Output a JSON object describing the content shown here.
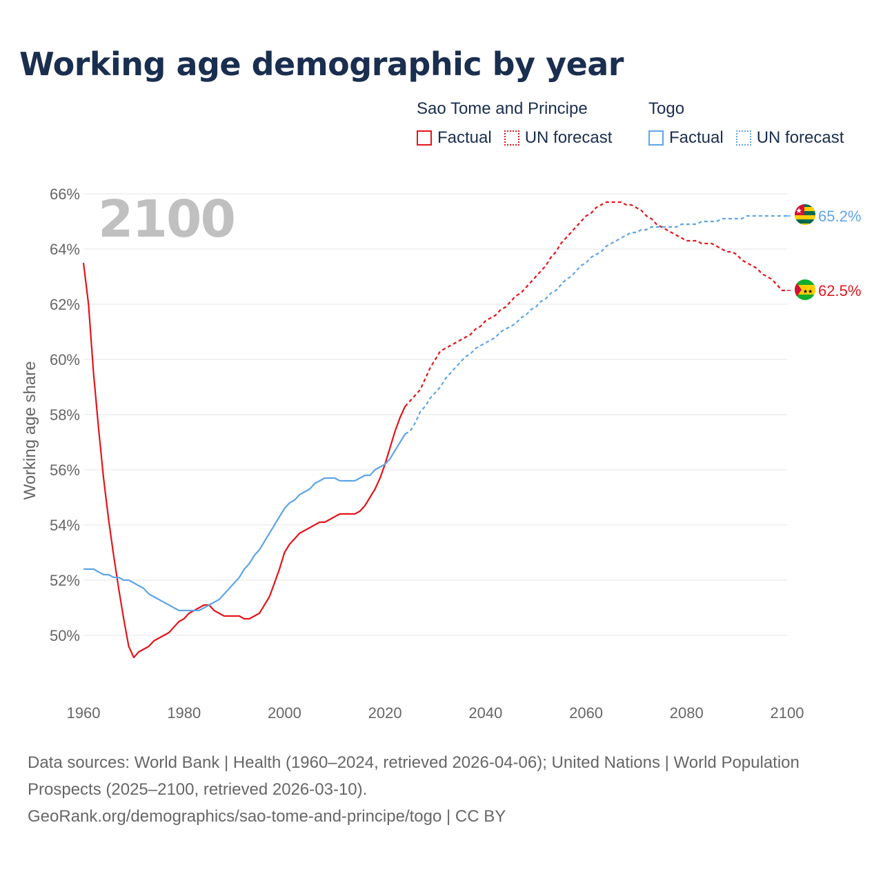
{
  "title": "Working age demographic by year",
  "legend": {
    "groups": [
      {
        "name": "Sao Tome and Principe",
        "factual": "Factual",
        "forecast": "UN forecast",
        "color": "#e3141a"
      },
      {
        "name": "Togo",
        "factual": "Factual",
        "forecast": "UN forecast",
        "color": "#5ea5e6"
      }
    ]
  },
  "source": {
    "line1": "Data sources: World Bank | Health (1960–2024, retrieved 2026-04-06); United Nations | World Population Prospects (2025–2100, retrieved 2026-03-10).",
    "line2": "GeoRank.org/demographics/sao-tome-and-principe/togo | CC BY"
  },
  "chart_data": {
    "type": "line",
    "year_watermark": "2100",
    "ylabel": "Working age share",
    "xlim": [
      1960,
      2100
    ],
    "ylim": [
      48,
      66
    ],
    "yticks": [
      50,
      52,
      54,
      56,
      58,
      60,
      62,
      64,
      66
    ],
    "ytick_labels": [
      "50%",
      "52%",
      "54%",
      "56%",
      "58%",
      "60%",
      "62%",
      "64%",
      "66%"
    ],
    "xticks": [
      1960,
      1980,
      2000,
      2020,
      2040,
      2060,
      2080,
      2100
    ],
    "xtick_labels": [
      "1960",
      "1980",
      "2000",
      "2020",
      "2040",
      "2060",
      "2080",
      "2100"
    ],
    "factual_end_year": 2024,
    "series": [
      {
        "name": "Sao Tome and Principe",
        "color": "#e3141a",
        "end_label": "62.5%",
        "flag_icon": "sao-tome-flag-icon",
        "points": [
          [
            1960,
            63.5
          ],
          [
            1961,
            62.0
          ],
          [
            1962,
            59.5
          ],
          [
            1963,
            57.5
          ],
          [
            1964,
            55.7
          ],
          [
            1965,
            54.2
          ],
          [
            1966,
            52.9
          ],
          [
            1967,
            51.7
          ],
          [
            1968,
            50.6
          ],
          [
            1969,
            49.6
          ],
          [
            1970,
            49.2
          ],
          [
            1971,
            49.4
          ],
          [
            1972,
            49.5
          ],
          [
            1973,
            49.6
          ],
          [
            1974,
            49.8
          ],
          [
            1975,
            49.9
          ],
          [
            1976,
            50.0
          ],
          [
            1977,
            50.1
          ],
          [
            1978,
            50.3
          ],
          [
            1979,
            50.5
          ],
          [
            1980,
            50.6
          ],
          [
            1981,
            50.8
          ],
          [
            1982,
            50.9
          ],
          [
            1983,
            51.0
          ],
          [
            1984,
            51.1
          ],
          [
            1985,
            51.1
          ],
          [
            1986,
            50.9
          ],
          [
            1987,
            50.8
          ],
          [
            1988,
            50.7
          ],
          [
            1989,
            50.7
          ],
          [
            1990,
            50.7
          ],
          [
            1991,
            50.7
          ],
          [
            1992,
            50.6
          ],
          [
            1993,
            50.6
          ],
          [
            1994,
            50.7
          ],
          [
            1995,
            50.8
          ],
          [
            1996,
            51.1
          ],
          [
            1997,
            51.4
          ],
          [
            1998,
            51.9
          ],
          [
            1999,
            52.4
          ],
          [
            2000,
            53.0
          ],
          [
            2001,
            53.3
          ],
          [
            2002,
            53.5
          ],
          [
            2003,
            53.7
          ],
          [
            2004,
            53.8
          ],
          [
            2005,
            53.9
          ],
          [
            2006,
            54.0
          ],
          [
            2007,
            54.1
          ],
          [
            2008,
            54.1
          ],
          [
            2009,
            54.2
          ],
          [
            2010,
            54.3
          ],
          [
            2011,
            54.4
          ],
          [
            2012,
            54.4
          ],
          [
            2013,
            54.4
          ],
          [
            2014,
            54.4
          ],
          [
            2015,
            54.5
          ],
          [
            2016,
            54.7
          ],
          [
            2017,
            55.0
          ],
          [
            2018,
            55.3
          ],
          [
            2019,
            55.7
          ],
          [
            2020,
            56.2
          ],
          [
            2021,
            56.8
          ],
          [
            2022,
            57.4
          ],
          [
            2023,
            57.9
          ],
          [
            2024,
            58.3
          ],
          [
            2025,
            58.5
          ],
          [
            2026,
            58.7
          ],
          [
            2027,
            58.9
          ],
          [
            2028,
            59.3
          ],
          [
            2029,
            59.7
          ],
          [
            2030,
            60.0
          ],
          [
            2031,
            60.3
          ],
          [
            2032,
            60.4
          ],
          [
            2033,
            60.5
          ],
          [
            2034,
            60.6
          ],
          [
            2035,
            60.7
          ],
          [
            2036,
            60.8
          ],
          [
            2037,
            60.9
          ],
          [
            2038,
            61.1
          ],
          [
            2039,
            61.2
          ],
          [
            2040,
            61.4
          ],
          [
            2041,
            61.5
          ],
          [
            2042,
            61.6
          ],
          [
            2043,
            61.8
          ],
          [
            2044,
            61.9
          ],
          [
            2045,
            62.1
          ],
          [
            2046,
            62.3
          ],
          [
            2047,
            62.4
          ],
          [
            2048,
            62.6
          ],
          [
            2049,
            62.8
          ],
          [
            2050,
            63.0
          ],
          [
            2051,
            63.2
          ],
          [
            2052,
            63.4
          ],
          [
            2053,
            63.7
          ],
          [
            2054,
            63.9
          ],
          [
            2055,
            64.2
          ],
          [
            2056,
            64.4
          ],
          [
            2057,
            64.6
          ],
          [
            2058,
            64.8
          ],
          [
            2059,
            65.0
          ],
          [
            2060,
            65.2
          ],
          [
            2061,
            65.3
          ],
          [
            2062,
            65.5
          ],
          [
            2063,
            65.6
          ],
          [
            2064,
            65.7
          ],
          [
            2065,
            65.7
          ],
          [
            2066,
            65.7
          ],
          [
            2067,
            65.7
          ],
          [
            2068,
            65.6
          ],
          [
            2069,
            65.6
          ],
          [
            2070,
            65.5
          ],
          [
            2071,
            65.4
          ],
          [
            2072,
            65.2
          ],
          [
            2073,
            65.1
          ],
          [
            2074,
            64.9
          ],
          [
            2075,
            64.8
          ],
          [
            2076,
            64.7
          ],
          [
            2077,
            64.6
          ],
          [
            2078,
            64.5
          ],
          [
            2079,
            64.4
          ],
          [
            2080,
            64.3
          ],
          [
            2081,
            64.3
          ],
          [
            2082,
            64.3
          ],
          [
            2083,
            64.2
          ],
          [
            2084,
            64.2
          ],
          [
            2085,
            64.2
          ],
          [
            2086,
            64.1
          ],
          [
            2087,
            64.0
          ],
          [
            2088,
            63.9
          ],
          [
            2089,
            63.9
          ],
          [
            2090,
            63.8
          ],
          [
            2091,
            63.6
          ],
          [
            2092,
            63.5
          ],
          [
            2093,
            63.4
          ],
          [
            2094,
            63.3
          ],
          [
            2095,
            63.1
          ],
          [
            2096,
            63.0
          ],
          [
            2097,
            62.9
          ],
          [
            2098,
            62.7
          ],
          [
            2099,
            62.5
          ],
          [
            2100,
            62.5
          ]
        ]
      },
      {
        "name": "Togo",
        "color": "#5ea5e6",
        "end_label": "65.2%",
        "flag_icon": "togo-flag-icon",
        "points": [
          [
            1960,
            52.4
          ],
          [
            1961,
            52.4
          ],
          [
            1962,
            52.4
          ],
          [
            1963,
            52.3
          ],
          [
            1964,
            52.2
          ],
          [
            1965,
            52.2
          ],
          [
            1966,
            52.1
          ],
          [
            1967,
            52.1
          ],
          [
            1968,
            52.0
          ],
          [
            1969,
            52.0
          ],
          [
            1970,
            51.9
          ],
          [
            1971,
            51.8
          ],
          [
            1972,
            51.7
          ],
          [
            1973,
            51.5
          ],
          [
            1974,
            51.4
          ],
          [
            1975,
            51.3
          ],
          [
            1976,
            51.2
          ],
          [
            1977,
            51.1
          ],
          [
            1978,
            51.0
          ],
          [
            1979,
            50.9
          ],
          [
            1980,
            50.9
          ],
          [
            1981,
            50.9
          ],
          [
            1982,
            50.9
          ],
          [
            1983,
            50.9
          ],
          [
            1984,
            51.0
          ],
          [
            1985,
            51.1
          ],
          [
            1986,
            51.2
          ],
          [
            1987,
            51.3
          ],
          [
            1988,
            51.5
          ],
          [
            1989,
            51.7
          ],
          [
            1990,
            51.9
          ],
          [
            1991,
            52.1
          ],
          [
            1992,
            52.4
          ],
          [
            1993,
            52.6
          ],
          [
            1994,
            52.9
          ],
          [
            1995,
            53.1
          ],
          [
            1996,
            53.4
          ],
          [
            1997,
            53.7
          ],
          [
            1998,
            54.0
          ],
          [
            1999,
            54.3
          ],
          [
            2000,
            54.6
          ],
          [
            2001,
            54.8
          ],
          [
            2002,
            54.9
          ],
          [
            2003,
            55.1
          ],
          [
            2004,
            55.2
          ],
          [
            2005,
            55.3
          ],
          [
            2006,
            55.5
          ],
          [
            2007,
            55.6
          ],
          [
            2008,
            55.7
          ],
          [
            2009,
            55.7
          ],
          [
            2010,
            55.7
          ],
          [
            2011,
            55.6
          ],
          [
            2012,
            55.6
          ],
          [
            2013,
            55.6
          ],
          [
            2014,
            55.6
          ],
          [
            2015,
            55.7
          ],
          [
            2016,
            55.8
          ],
          [
            2017,
            55.8
          ],
          [
            2018,
            56.0
          ],
          [
            2019,
            56.1
          ],
          [
            2020,
            56.2
          ],
          [
            2021,
            56.4
          ],
          [
            2022,
            56.7
          ],
          [
            2023,
            57.0
          ],
          [
            2024,
            57.3
          ],
          [
            2025,
            57.4
          ],
          [
            2026,
            57.7
          ],
          [
            2027,
            58.1
          ],
          [
            2028,
            58.3
          ],
          [
            2029,
            58.6
          ],
          [
            2030,
            58.8
          ],
          [
            2031,
            59.0
          ],
          [
            2032,
            59.3
          ],
          [
            2033,
            59.5
          ],
          [
            2034,
            59.7
          ],
          [
            2035,
            59.9
          ],
          [
            2036,
            60.1
          ],
          [
            2037,
            60.2
          ],
          [
            2038,
            60.4
          ],
          [
            2039,
            60.5
          ],
          [
            2040,
            60.6
          ],
          [
            2041,
            60.7
          ],
          [
            2042,
            60.8
          ],
          [
            2043,
            61.0
          ],
          [
            2044,
            61.1
          ],
          [
            2045,
            61.2
          ],
          [
            2046,
            61.3
          ],
          [
            2047,
            61.5
          ],
          [
            2048,
            61.6
          ],
          [
            2049,
            61.8
          ],
          [
            2050,
            61.9
          ],
          [
            2051,
            62.1
          ],
          [
            2052,
            62.2
          ],
          [
            2053,
            62.4
          ],
          [
            2054,
            62.5
          ],
          [
            2055,
            62.7
          ],
          [
            2056,
            62.9
          ],
          [
            2057,
            63.0
          ],
          [
            2058,
            63.2
          ],
          [
            2059,
            63.4
          ],
          [
            2060,
            63.5
          ],
          [
            2061,
            63.7
          ],
          [
            2062,
            63.8
          ],
          [
            2063,
            63.9
          ],
          [
            2064,
            64.1
          ],
          [
            2065,
            64.2
          ],
          [
            2066,
            64.3
          ],
          [
            2067,
            64.4
          ],
          [
            2068,
            64.5
          ],
          [
            2069,
            64.6
          ],
          [
            2070,
            64.6
          ],
          [
            2071,
            64.7
          ],
          [
            2072,
            64.7
          ],
          [
            2073,
            64.8
          ],
          [
            2074,
            64.8
          ],
          [
            2075,
            64.8
          ],
          [
            2076,
            64.8
          ],
          [
            2077,
            64.8
          ],
          [
            2078,
            64.8
          ],
          [
            2079,
            64.9
          ],
          [
            2080,
            64.9
          ],
          [
            2081,
            64.9
          ],
          [
            2082,
            64.9
          ],
          [
            2083,
            65.0
          ],
          [
            2084,
            65.0
          ],
          [
            2085,
            65.0
          ],
          [
            2086,
            65.0
          ],
          [
            2087,
            65.1
          ],
          [
            2088,
            65.1
          ],
          [
            2089,
            65.1
          ],
          [
            2090,
            65.1
          ],
          [
            2091,
            65.1
          ],
          [
            2092,
            65.2
          ],
          [
            2093,
            65.2
          ],
          [
            2094,
            65.2
          ],
          [
            2095,
            65.2
          ],
          [
            2096,
            65.2
          ],
          [
            2097,
            65.2
          ],
          [
            2098,
            65.2
          ],
          [
            2099,
            65.2
          ],
          [
            2100,
            65.2
          ]
        ]
      }
    ]
  }
}
